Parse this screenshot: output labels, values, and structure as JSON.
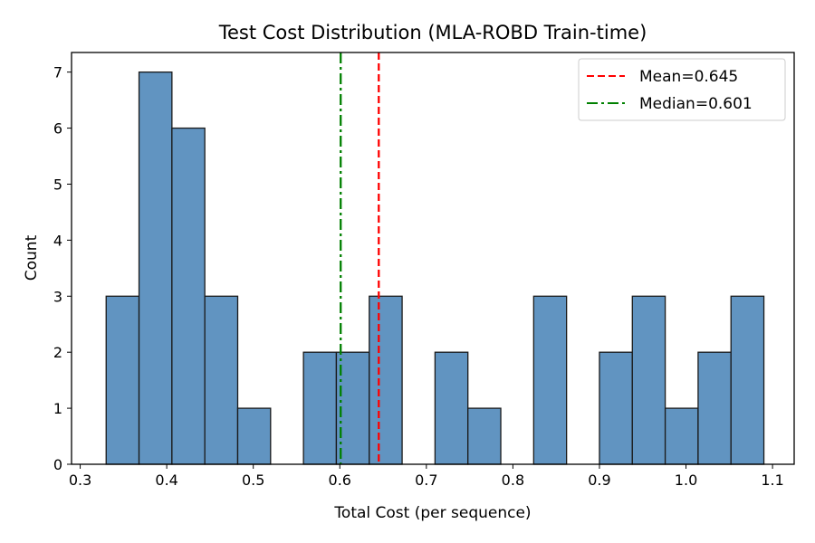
{
  "chart_data": {
    "type": "bar",
    "subtype": "histogram",
    "title": "Test Cost Distribution (MLA-ROBD Train-time)",
    "xlabel": "Total Cost (per sequence)",
    "ylabel": "Count",
    "xlim": [
      0.29,
      1.125
    ],
    "ylim": [
      0,
      7.35
    ],
    "xticks": [
      "0.3",
      "0.4",
      "0.5",
      "0.6",
      "0.7",
      "0.8",
      "0.9",
      "1.0",
      "1.1"
    ],
    "yticks": [
      "0",
      "1",
      "2",
      "3",
      "4",
      "5",
      "6",
      "7"
    ],
    "bin_start": 0.33,
    "bin_width": 0.038,
    "counts": [
      3,
      7,
      6,
      3,
      1,
      0,
      2,
      2,
      3,
      0,
      2,
      1,
      0,
      3,
      0,
      2,
      3,
      1,
      2,
      3
    ],
    "bar_color": "#6194c1",
    "edge_color": "#1a1a1a",
    "grid": false,
    "legend": {
      "placement": "top-right",
      "entries": [
        {
          "label": "Mean=0.645",
          "value": 0.645,
          "color": "#ff0000",
          "style": "dashed"
        },
        {
          "label": "Median=0.601",
          "value": 0.601,
          "color": "#008000",
          "style": "dashdot"
        }
      ]
    }
  }
}
